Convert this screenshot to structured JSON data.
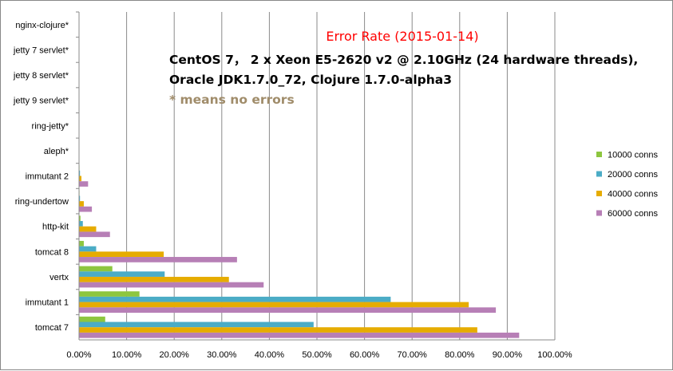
{
  "chart_data": {
    "type": "bar",
    "orientation": "horizontal",
    "title": "Error Rate (2015-01-14)",
    "subtitle_lines": [
      "CentOS 7，  2 x Xeon E5-2620 v2 @ 2.10GHz (24 hardware threads),",
      "Oracle JDK1.7.0_72,  Clojure  1.7.0-alpha3"
    ],
    "note": "* means no errors",
    "xlabel": "",
    "ylabel": "",
    "xlim": [
      0,
      1
    ],
    "x_ticks": [
      0,
      0.1,
      0.2,
      0.3,
      0.4,
      0.5,
      0.6,
      0.7,
      0.8,
      0.9,
      1.0
    ],
    "x_tick_labels": [
      "0.00%",
      "10.00%",
      "20.00%",
      "30.00%",
      "40.00%",
      "50.00%",
      "60.00%",
      "70.00%",
      "80.00%",
      "90.00%",
      "100.00%"
    ],
    "grid": "vertical",
    "legend_position": "right",
    "categories": [
      "nginx-clojure*",
      "jetty 7 servlet*",
      "jetty 8 servlet*",
      "jetty 9 servlet*",
      "ring-jetty*",
      "aleph*",
      "immutant 2",
      "ring-undertow",
      "http-kit",
      "tomcat 8",
      "vertx",
      "immutant 1",
      "tomcat 7"
    ],
    "series": [
      {
        "name": "10000 conns",
        "color": "#8dc63f",
        "values": [
          0,
          0,
          0,
          0,
          0,
          0,
          0.001,
          0.001,
          0.003,
          0.01,
          0.07,
          0.127,
          0.055
        ]
      },
      {
        "name": "20000 conns",
        "color": "#4bacc6",
        "values": [
          0,
          0,
          0,
          0,
          0,
          0,
          0.002,
          0.002,
          0.008,
          0.036,
          0.18,
          0.655,
          0.493
        ]
      },
      {
        "name": "40000 conns",
        "color": "#e6ac00",
        "values": [
          0,
          0,
          0,
          0,
          0,
          0,
          0.005,
          0.01,
          0.036,
          0.178,
          0.315,
          0.819,
          0.837
        ]
      },
      {
        "name": "60000 conns",
        "color": "#b77fb6",
        "values": [
          0,
          0,
          0,
          0,
          0,
          0,
          0.019,
          0.027,
          0.065,
          0.332,
          0.388,
          0.876,
          0.925
        ]
      }
    ]
  }
}
